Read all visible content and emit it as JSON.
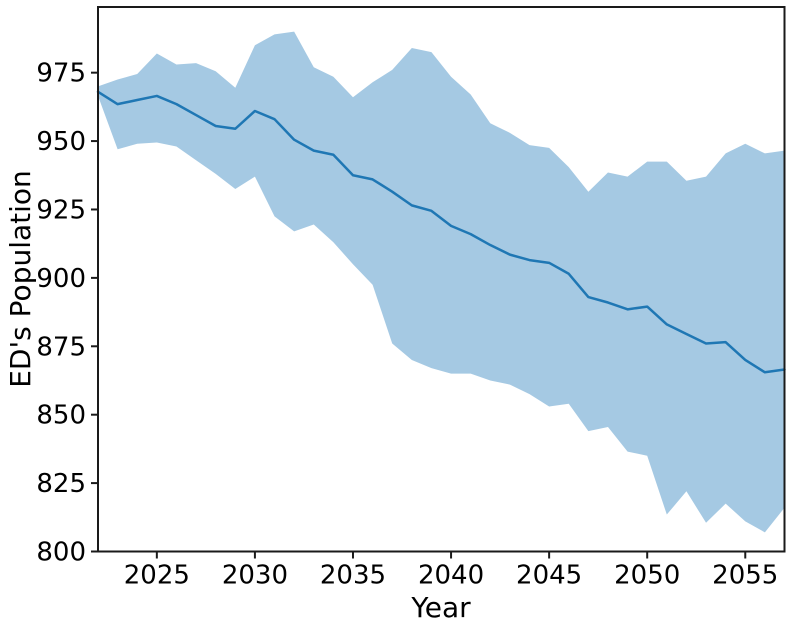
{
  "figure": {
    "background": "#ffffff"
  },
  "chart_data": {
    "type": "line",
    "title": "",
    "xlabel": "Year",
    "ylabel": "ED's Population",
    "xlim": [
      2022,
      2057
    ],
    "ylim": [
      800,
      999
    ],
    "x_ticks": [
      2025,
      2030,
      2035,
      2040,
      2045,
      2050,
      2055
    ],
    "y_ticks": [
      800,
      825,
      850,
      875,
      900,
      925,
      950,
      975
    ],
    "grid": false,
    "legend": "none",
    "band": "shaded uncertainty interval between lower_band and upper_band",
    "colors": {
      "line": "#1f77b4",
      "band": "#a5c9e3",
      "spine": "#1a1a1a",
      "tick": "#1a1a1a",
      "text": "#000000"
    },
    "x": [
      2022,
      2023,
      2024,
      2025,
      2026,
      2027,
      2028,
      2029,
      2030,
      2031,
      2032,
      2033,
      2034,
      2035,
      2036,
      2037,
      2038,
      2039,
      2040,
      2041,
      2042,
      2043,
      2044,
      2045,
      2046,
      2047,
      2048,
      2049,
      2050,
      2051,
      2052,
      2053,
      2054,
      2055,
      2056,
      2057
    ],
    "series": [
      {
        "name": "median",
        "values": [
          968,
          963.5,
          965,
          966.5,
          963.5,
          959.5,
          955.5,
          954.5,
          961,
          958,
          950.5,
          946.5,
          945,
          937.5,
          936,
          931.5,
          926.5,
          924.5,
          919,
          916,
          912,
          908.5,
          906.5,
          905.5,
          901.5,
          893,
          891,
          888.5,
          889.5,
          883,
          879.5,
          876,
          876.5,
          870,
          865.5,
          866.5
        ]
      },
      {
        "name": "upper_band",
        "values": [
          970,
          972.5,
          974.5,
          982,
          978,
          978.5,
          975.5,
          969.5,
          985,
          989,
          990,
          977,
          973.5,
          966,
          971.5,
          976,
          984,
          982.5,
          973.5,
          967,
          956.5,
          953,
          948.5,
          947.5,
          940.5,
          931.5,
          938.5,
          937,
          942.5,
          942.5,
          935.5,
          937,
          945.5,
          949,
          945.5,
          946.5
        ]
      },
      {
        "name": "lower_band",
        "values": [
          966.5,
          947,
          949,
          949.5,
          948,
          943,
          938,
          932.5,
          937,
          922.5,
          917,
          919.5,
          913,
          905,
          897.5,
          876,
          870,
          867,
          865,
          865,
          862.5,
          861,
          857.5,
          853,
          854,
          844,
          845.5,
          836.5,
          835,
          813.5,
          822,
          810.5,
          817.5,
          811,
          807,
          816
        ]
      }
    ]
  }
}
